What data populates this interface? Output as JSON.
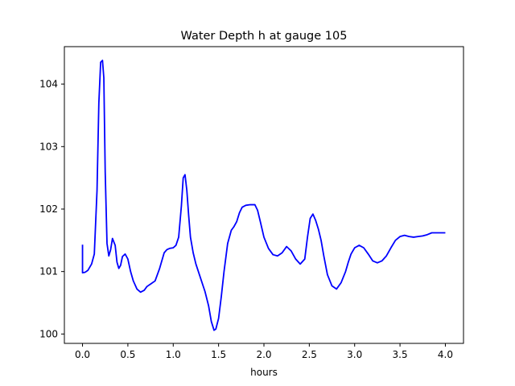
{
  "chart_data": {
    "type": "line",
    "title": "Water Depth h at gauge 105",
    "xlabel": "hours",
    "ylabel": "",
    "xlim": [
      -0.2,
      4.2
    ],
    "ylim": [
      99.85,
      104.6
    ],
    "xticks": [
      0.0,
      0.5,
      1.0,
      1.5,
      2.0,
      2.5,
      3.0,
      3.5,
      4.0
    ],
    "xtick_labels": [
      "0.0",
      "0.5",
      "1.0",
      "1.5",
      "2.0",
      "2.5",
      "3.0",
      "3.5",
      "4.0"
    ],
    "yticks": [
      100,
      101,
      102,
      103,
      104
    ],
    "ytick_labels": [
      "100",
      "101",
      "102",
      "103",
      "104"
    ],
    "grid": false,
    "series": [
      {
        "color": "#0000ff",
        "x": [
          0.0,
          0.0,
          0.0,
          0.03,
          0.06,
          0.1,
          0.13,
          0.16,
          0.18,
          0.2,
          0.22,
          0.235,
          0.25,
          0.27,
          0.29,
          0.31,
          0.33,
          0.36,
          0.38,
          0.4,
          0.42,
          0.44,
          0.47,
          0.5,
          0.53,
          0.56,
          0.6,
          0.64,
          0.68,
          0.71,
          0.75,
          0.8,
          0.85,
          0.9,
          0.93,
          0.96,
          1.0,
          1.03,
          1.06,
          1.09,
          1.11,
          1.13,
          1.15,
          1.17,
          1.19,
          1.22,
          1.25,
          1.3,
          1.35,
          1.39,
          1.42,
          1.45,
          1.47,
          1.5,
          1.53,
          1.56,
          1.6,
          1.64,
          1.67,
          1.7,
          1.73,
          1.76,
          1.8,
          1.85,
          1.9,
          1.93,
          1.96,
          2.0,
          2.05,
          2.1,
          2.15,
          2.2,
          2.25,
          2.3,
          2.35,
          2.4,
          2.45,
          2.48,
          2.51,
          2.54,
          2.57,
          2.6,
          2.63,
          2.66,
          2.7,
          2.75,
          2.8,
          2.85,
          2.9,
          2.93,
          2.96,
          3.0,
          3.05,
          3.1,
          3.15,
          3.2,
          3.25,
          3.3,
          3.35,
          3.4,
          3.45,
          3.5,
          3.55,
          3.6,
          3.65,
          3.7,
          3.75,
          3.8,
          3.85,
          3.9,
          3.95,
          4.0
        ],
        "y": [
          101.43,
          101.0,
          100.98,
          100.99,
          101.02,
          101.12,
          101.28,
          102.3,
          103.7,
          104.35,
          104.38,
          104.1,
          102.6,
          101.45,
          101.25,
          101.35,
          101.53,
          101.42,
          101.15,
          101.05,
          101.1,
          101.24,
          101.28,
          101.2,
          101.0,
          100.85,
          100.72,
          100.67,
          100.7,
          100.76,
          100.8,
          100.85,
          101.05,
          101.3,
          101.35,
          101.37,
          101.38,
          101.42,
          101.55,
          102.05,
          102.5,
          102.55,
          102.3,
          101.9,
          101.55,
          101.3,
          101.12,
          100.9,
          100.68,
          100.45,
          100.2,
          100.06,
          100.08,
          100.25,
          100.6,
          101.0,
          101.45,
          101.66,
          101.72,
          101.8,
          101.94,
          102.03,
          102.06,
          102.07,
          102.07,
          101.98,
          101.8,
          101.55,
          101.37,
          101.27,
          101.25,
          101.3,
          101.4,
          101.33,
          101.2,
          101.12,
          101.2,
          101.55,
          101.85,
          101.92,
          101.82,
          101.68,
          101.5,
          101.25,
          100.95,
          100.77,
          100.72,
          100.82,
          101.0,
          101.15,
          101.28,
          101.38,
          101.42,
          101.38,
          101.28,
          101.17,
          101.14,
          101.17,
          101.25,
          101.38,
          101.5,
          101.56,
          101.58,
          101.56,
          101.55,
          101.56,
          101.57,
          101.59,
          101.62,
          101.62,
          101.62,
          101.62
        ]
      }
    ]
  }
}
